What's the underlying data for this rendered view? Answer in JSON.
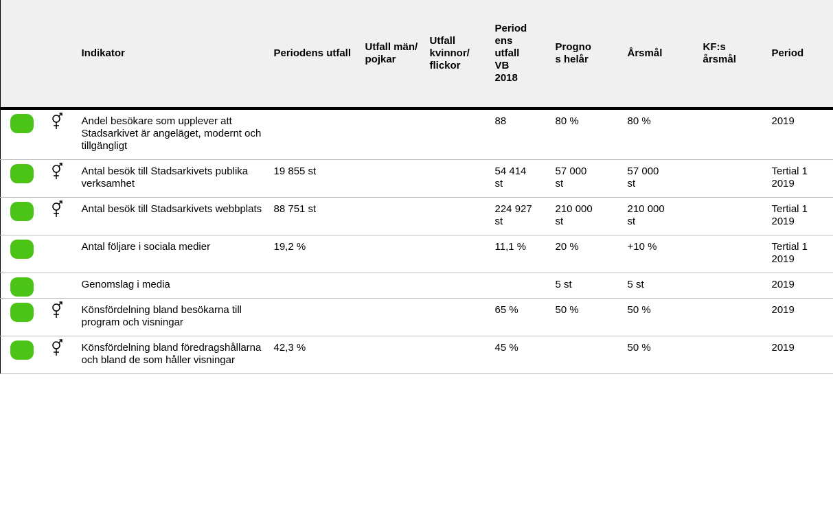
{
  "table": {
    "headers": [
      "Indikator",
      "Periodens utfall",
      "Utfall män/ pojkar",
      "Utfall kvinnor/ flickor",
      "Periodens utfall VB 2018",
      "Prognos helår",
      "Årsmål",
      "KF:s årsmål",
      "Period"
    ],
    "rows": [
      {
        "status": "green",
        "gender": true,
        "cells": [
          "Andel besökare som upplever att Stadsarkivet är angeläget, modernt och tillgängligt",
          "",
          "",
          "",
          "88",
          "80 %",
          "80 %",
          "",
          "2019"
        ]
      },
      {
        "status": "green",
        "gender": true,
        "cells": [
          "Antal besök till Stadsarkivets publika verksamhet",
          "19 855 st",
          "",
          "",
          "54 414 st",
          "57 000 st",
          "57 000 st",
          "",
          "Tertial 1 2019"
        ]
      },
      {
        "status": "green",
        "gender": true,
        "cells": [
          "Antal besök till Stadsarkivets webbplats",
          "88 751 st",
          "",
          "",
          "224 927 st",
          "210 000 st",
          "210 000 st",
          "",
          "Tertial 1 2019"
        ]
      },
      {
        "status": "green",
        "gender": false,
        "cells": [
          "Antal följare i sociala medier",
          "19,2 %",
          "",
          "",
          "11,1 %",
          "20 %",
          "+10 %",
          "",
          "Tertial 1 2019"
        ]
      },
      {
        "status": "green",
        "gender": false,
        "cells": [
          "Genomslag i media",
          "",
          "",
          "",
          "",
          "5 st",
          "5 st",
          "",
          "2019"
        ]
      },
      {
        "status": "green",
        "gender": true,
        "cells": [
          "Könsfördelning bland besökarna till program och visningar",
          "",
          "",
          "",
          "65 %",
          "50 %",
          "50 %",
          "",
          "2019"
        ]
      },
      {
        "status": "green",
        "gender": true,
        "cells": [
          "Könsfördelning bland föredragshållarna och bland de som håller visningar",
          "42,3 %",
          "",
          "",
          "45 %",
          "",
          "50 %",
          "",
          "2019"
        ]
      }
    ]
  }
}
